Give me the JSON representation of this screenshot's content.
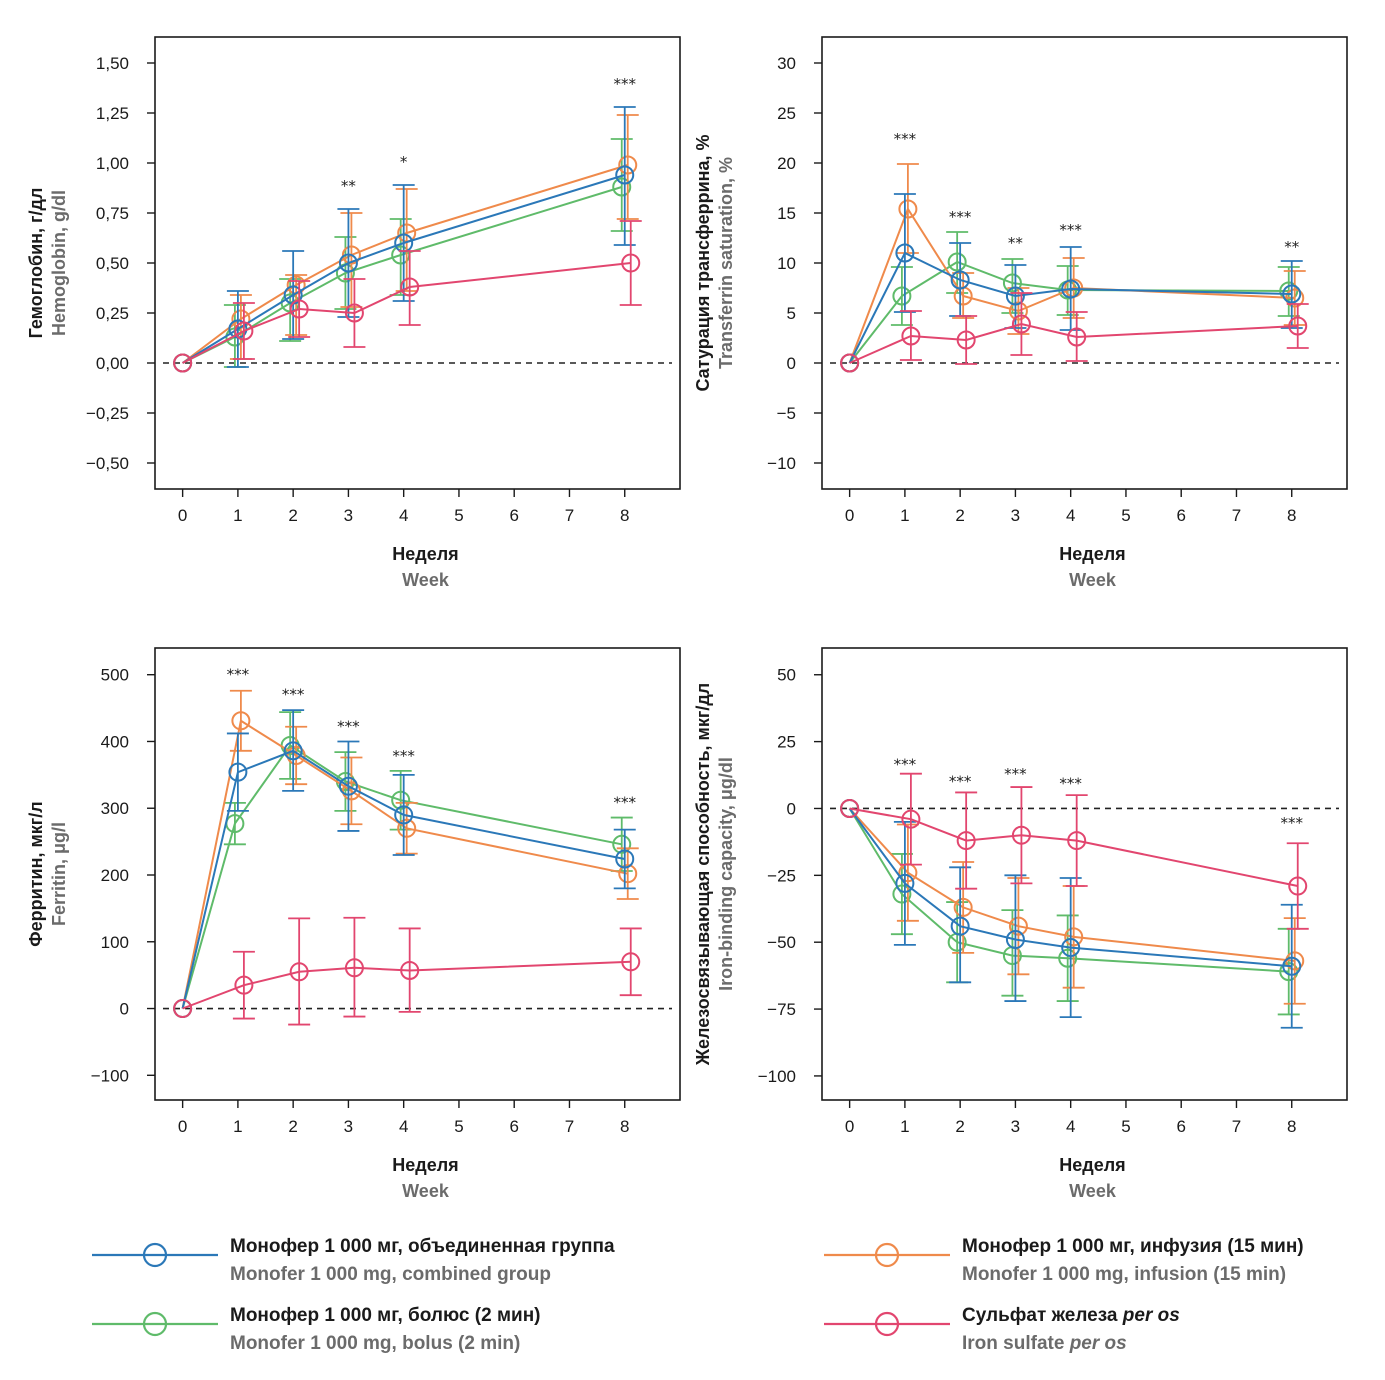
{
  "colors": {
    "combined": "#2b78b8",
    "infusion": "#ef8a4b",
    "bolus": "#5fbb6a",
    "oral": "#e2466f"
  },
  "legend": [
    {
      "key": "combined",
      "ru": "Монофер 1 000 мг, объединенная группа",
      "en": "Monofer 1 000 mg, combined group",
      "ru_italic": "",
      "en_italic": ""
    },
    {
      "key": "infusion",
      "ru": "Монофер 1 000 мг, инфузия (15 мин)",
      "en": "Monofer 1 000 mg, infusion (15 min)",
      "ru_italic": "",
      "en_italic": ""
    },
    {
      "key": "bolus",
      "ru": "Монофер 1 000 мг, болюс (2 мин)",
      "en": "Monofer 1 000 mg, bolus (2 min)",
      "ru_italic": "",
      "en_italic": ""
    },
    {
      "key": "oral",
      "ru": "Сульфат железа ",
      "en": "Iron sulfate ",
      "ru_italic": "per os",
      "en_italic": "per os"
    }
  ],
  "chart_data": [
    {
      "type": "line",
      "ylabel_ru": "Гемоглобин, г/дл",
      "ylabel_en": "Hemoglobin, g/dl",
      "xlabel_ru": "Неделя",
      "xlabel_en": "Week",
      "xlim": [
        -0.5,
        9.0
      ],
      "ylim": [
        -0.63,
        1.63
      ],
      "xticks": [
        0,
        1,
        2,
        3,
        4,
        5,
        6,
        7,
        8
      ],
      "xtick_labels": [
        "0",
        "1",
        "2",
        "3",
        "4",
        "5",
        "6",
        "7",
        "8"
      ],
      "yticks": [
        -0.5,
        -0.25,
        0,
        0.25,
        0.5,
        0.75,
        1.0,
        1.25,
        1.5
      ],
      "ytick_labels": [
        "−0,50",
        "−0,25",
        "0,00",
        "0,25",
        "0,50",
        "0,75",
        "1,00",
        "1,25",
        "1,50"
      ],
      "reference_line": 0,
      "x": [
        0,
        1,
        2,
        3,
        4,
        8
      ],
      "series": [
        {
          "key": "combined",
          "values": [
            0,
            0.17,
            0.34,
            0.5,
            0.6,
            0.94
          ],
          "lower": [
            0,
            -0.02,
            0.12,
            0.23,
            0.31,
            0.59
          ],
          "upper": [
            0,
            0.36,
            0.56,
            0.77,
            0.89,
            1.28
          ]
        },
        {
          "key": "infusion",
          "values": [
            0,
            0.22,
            0.39,
            0.54,
            0.65,
            0.99
          ],
          "lower": [
            0,
            0.02,
            0.14,
            0.28,
            0.36,
            0.72
          ],
          "upper": [
            0,
            0.34,
            0.44,
            0.75,
            0.87,
            1.24
          ]
        },
        {
          "key": "bolus",
          "values": [
            0,
            0.13,
            0.3,
            0.45,
            0.54,
            0.88
          ],
          "lower": [
            0,
            -0.02,
            0.11,
            0.27,
            0.34,
            0.66
          ],
          "upper": [
            0,
            0.29,
            0.42,
            0.63,
            0.72,
            1.12
          ]
        },
        {
          "key": "oral",
          "values": [
            0,
            0.16,
            0.27,
            0.25,
            0.38,
            0.5
          ],
          "lower": [
            0,
            0.02,
            0.13,
            0.08,
            0.19,
            0.29
          ],
          "upper": [
            0,
            0.3,
            0.41,
            0.42,
            0.56,
            0.71
          ]
        }
      ],
      "significance": [
        {
          "x": 3,
          "y": 0.86,
          "text": "**"
        },
        {
          "x": 4,
          "y": 0.98,
          "text": "*"
        },
        {
          "x": 8,
          "y": 1.37,
          "text": "***"
        }
      ]
    },
    {
      "type": "line",
      "ylabel_ru": "Сатурация трансферрина, %",
      "ylabel_en": "Transferrin saturation, %",
      "xlabel_ru": "Неделя",
      "xlabel_en": "Week",
      "xlim": [
        -0.5,
        9.0
      ],
      "ylim": [
        -12.6,
        32.6
      ],
      "xticks": [
        0,
        1,
        2,
        3,
        4,
        5,
        6,
        7,
        8
      ],
      "xtick_labels": [
        "0",
        "1",
        "2",
        "3",
        "4",
        "5",
        "6",
        "7",
        "8"
      ],
      "yticks": [
        -10,
        -5,
        0,
        5,
        10,
        15,
        20,
        25,
        30
      ],
      "ytick_labels": [
        "−10",
        "−5",
        "0",
        "5",
        "10",
        "15",
        "20",
        "25",
        "30"
      ],
      "reference_line": 0,
      "x": [
        0,
        1,
        2,
        3,
        4,
        8
      ],
      "series": [
        {
          "key": "combined",
          "values": [
            0,
            11.0,
            8.3,
            6.7,
            7.4,
            6.9
          ],
          "lower": [
            0,
            5.1,
            4.7,
            3.5,
            3.3,
            3.5
          ],
          "upper": [
            0,
            16.9,
            12.0,
            9.8,
            11.6,
            10.2
          ]
        },
        {
          "key": "infusion",
          "values": [
            0,
            15.4,
            6.7,
            5.2,
            7.5,
            6.5
          ],
          "lower": [
            0,
            11.0,
            4.5,
            2.9,
            4.5,
            3.8
          ],
          "upper": [
            0,
            19.9,
            9.0,
            7.5,
            10.5,
            9.2
          ]
        },
        {
          "key": "bolus",
          "values": [
            0,
            6.7,
            10.1,
            8.0,
            7.3,
            7.2
          ],
          "lower": [
            0,
            3.8,
            7.0,
            5.0,
            4.8,
            4.7
          ],
          "upper": [
            0,
            9.6,
            13.1,
            10.4,
            9.7,
            9.6
          ]
        },
        {
          "key": "oral",
          "values": [
            0,
            2.7,
            2.3,
            3.9,
            2.6,
            3.7
          ],
          "lower": [
            0,
            0.3,
            -0.1,
            0.8,
            0.2,
            1.5
          ],
          "upper": [
            0,
            5.2,
            4.7,
            7.0,
            5.1,
            5.9
          ]
        }
      ],
      "significance": [
        {
          "x": 1,
          "y": 21.9,
          "text": "***"
        },
        {
          "x": 2,
          "y": 14.1,
          "text": "***"
        },
        {
          "x": 3,
          "y": 11.5,
          "text": "**"
        },
        {
          "x": 4,
          "y": 12.8,
          "text": "***"
        },
        {
          "x": 8,
          "y": 11.1,
          "text": "**"
        }
      ]
    },
    {
      "type": "line",
      "ylabel_ru": "Ферритин, мкг/л",
      "ylabel_en": "Ferritin, μg/l",
      "xlabel_ru": "Неделя",
      "xlabel_en": "Week",
      "xlim": [
        -0.5,
        9.0
      ],
      "ylim": [
        -137,
        540
      ],
      "xticks": [
        0,
        1,
        2,
        3,
        4,
        5,
        6,
        7,
        8
      ],
      "xtick_labels": [
        "0",
        "1",
        "2",
        "3",
        "4",
        "5",
        "6",
        "7",
        "8"
      ],
      "yticks": [
        -100,
        0,
        100,
        200,
        300,
        400,
        500
      ],
      "ytick_labels": [
        "−100",
        "0",
        "100",
        "200",
        "300",
        "400",
        "500"
      ],
      "reference_line": 0,
      "x": [
        0,
        1,
        2,
        3,
        4,
        8
      ],
      "series": [
        {
          "key": "combined",
          "values": [
            0,
            354,
            386,
            333,
            290,
            224
          ],
          "lower": [
            0,
            296,
            326,
            266,
            230,
            180
          ],
          "upper": [
            0,
            412,
            447,
            400,
            350,
            268
          ]
        },
        {
          "key": "infusion",
          "values": [
            0,
            431,
            379,
            326,
            270,
            202
          ],
          "lower": [
            0,
            386,
            336,
            276,
            232,
            164
          ],
          "upper": [
            0,
            476,
            422,
            376,
            308,
            240
          ]
        },
        {
          "key": "bolus",
          "values": [
            0,
            277,
            394,
            340,
            312,
            246
          ],
          "lower": [
            0,
            246,
            344,
            296,
            268,
            206
          ],
          "upper": [
            0,
            308,
            444,
            384,
            356,
            286
          ]
        },
        {
          "key": "oral",
          "values": [
            0,
            35,
            55,
            61,
            57,
            70
          ],
          "lower": [
            0,
            -15,
            -24,
            -12,
            -5,
            20
          ],
          "upper": [
            0,
            85,
            135,
            136,
            120,
            120
          ]
        }
      ],
      "significance": [
        {
          "x": 1,
          "y": 493,
          "text": "***"
        },
        {
          "x": 2,
          "y": 463,
          "text": "***"
        },
        {
          "x": 3,
          "y": 415,
          "text": "***"
        },
        {
          "x": 4,
          "y": 371,
          "text": "***"
        },
        {
          "x": 8,
          "y": 301,
          "text": "***"
        }
      ]
    },
    {
      "type": "line",
      "ylabel_ru": "Железосвязывающая способность, мкг/дл",
      "ylabel_en": "Iron-binding capacity, μg/dl",
      "xlabel_ru": "Неделя",
      "xlabel_en": "Week",
      "xlim": [
        -0.5,
        9.0
      ],
      "ylim": [
        -109,
        60
      ],
      "xticks": [
        0,
        1,
        2,
        3,
        4,
        5,
        6,
        7,
        8
      ],
      "xtick_labels": [
        "0",
        "1",
        "2",
        "3",
        "4",
        "5",
        "6",
        "7",
        "8"
      ],
      "yticks": [
        -100,
        -75,
        -50,
        -25,
        0,
        25,
        50
      ],
      "ytick_labels": [
        "−100",
        "−75",
        "−50",
        "−25",
        "0",
        "25",
        "50"
      ],
      "reference_line": 0,
      "x": [
        0,
        1,
        2,
        3,
        4,
        8
      ],
      "series": [
        {
          "key": "combined",
          "values": [
            0,
            -28,
            -44,
            -49,
            -52,
            -59
          ],
          "lower": [
            0,
            -51,
            -65,
            -72,
            -78,
            -82
          ],
          "upper": [
            0,
            -5,
            -22,
            -25,
            -26,
            -36
          ]
        },
        {
          "key": "infusion",
          "values": [
            0,
            -24,
            -37,
            -44,
            -48,
            -57
          ],
          "lower": [
            0,
            -42,
            -54,
            -62,
            -67,
            -73
          ],
          "upper": [
            0,
            -6,
            -20,
            -26,
            -29,
            -41
          ]
        },
        {
          "key": "bolus",
          "values": [
            0,
            -32,
            -50,
            -55,
            -56,
            -61
          ],
          "lower": [
            0,
            -47,
            -65,
            -70,
            -72,
            -77
          ],
          "upper": [
            0,
            -17,
            -35,
            -38,
            -40,
            -45
          ]
        },
        {
          "key": "oral",
          "values": [
            0,
            -4,
            -12,
            -10,
            -12,
            -29
          ],
          "lower": [
            0,
            -21,
            -30,
            -28,
            -29,
            -45
          ],
          "upper": [
            0,
            13,
            6,
            8,
            5,
            -13
          ]
        }
      ],
      "significance": [
        {
          "x": 1,
          "y": 14.5,
          "text": "***"
        },
        {
          "x": 2,
          "y": 8.3,
          "text": "***"
        },
        {
          "x": 3,
          "y": 11.0,
          "text": "***"
        },
        {
          "x": 4,
          "y": 7.4,
          "text": "***"
        },
        {
          "x": 8,
          "y": -7.3,
          "text": "***"
        }
      ]
    }
  ]
}
